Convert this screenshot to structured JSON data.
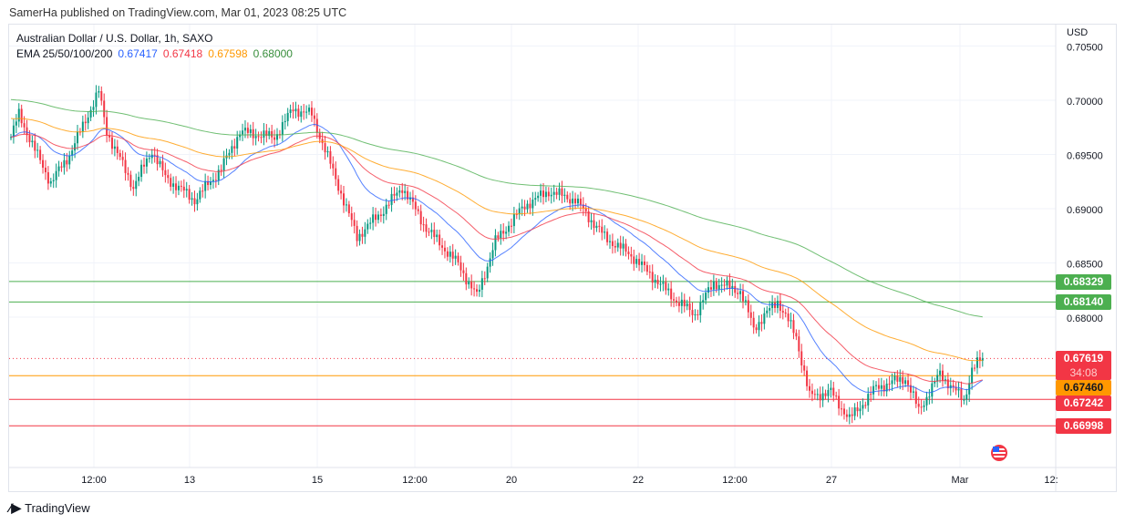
{
  "published": "SamerHa published on TradingView.com, Mar 01, 2023 08:25 UTC",
  "symbol_line": "Australian Dollar / U.S. Dollar, 1h, SAXO",
  "ema": {
    "label": "EMA 25/50/100/200",
    "values": [
      "0.67417",
      "0.67418",
      "0.67598",
      "0.68000"
    ],
    "colors": [
      "#2962ff",
      "#f23645",
      "#ff9800",
      "#388e3c"
    ]
  },
  "currency": "USD",
  "footer": "TradingView",
  "chart_data": {
    "type": "candlestick",
    "y_ticks": [
      "0.70500",
      "0.70000",
      "0.69500",
      "0.69000",
      "0.68500",
      "0.68000"
    ],
    "x_ticks": [
      "12:00",
      "13",
      "15",
      "12:00",
      "20",
      "22",
      "12:00",
      "27",
      "Mar",
      "12:"
    ],
    "ylim": [
      0.6668,
      0.7055
    ],
    "close_path": [
      [
        0,
        0.6966
      ],
      [
        3,
        0.6987
      ],
      [
        9,
        0.6954
      ],
      [
        15,
        0.6924
      ],
      [
        22,
        0.695
      ],
      [
        33,
        0.7008
      ],
      [
        36,
        0.6971
      ],
      [
        46,
        0.692
      ],
      [
        53,
        0.6954
      ],
      [
        58,
        0.6929
      ],
      [
        69,
        0.6908
      ],
      [
        79,
        0.6937
      ],
      [
        86,
        0.6971
      ],
      [
        99,
        0.6966
      ],
      [
        106,
        0.6992
      ],
      [
        113,
        0.6987
      ],
      [
        120,
        0.6941
      ],
      [
        130,
        0.6874
      ],
      [
        140,
        0.6899
      ],
      [
        147,
        0.692
      ],
      [
        156,
        0.6882
      ],
      [
        168,
        0.6849
      ],
      [
        175,
        0.6819
      ],
      [
        182,
        0.687
      ],
      [
        193,
        0.6903
      ],
      [
        202,
        0.6916
      ],
      [
        212,
        0.6908
      ],
      [
        223,
        0.6874
      ],
      [
        233,
        0.6857
      ],
      [
        240,
        0.684
      ],
      [
        250,
        0.6815
      ],
      [
        257,
        0.6803
      ],
      [
        264,
        0.6832
      ],
      [
        274,
        0.6824
      ],
      [
        279,
        0.679
      ],
      [
        288,
        0.6815
      ],
      [
        295,
        0.6782
      ],
      [
        300,
        0.6727
      ],
      [
        308,
        0.6731
      ],
      [
        315,
        0.6706
      ],
      [
        325,
        0.6735
      ],
      [
        336,
        0.6744
      ],
      [
        341,
        0.6714
      ],
      [
        349,
        0.6748
      ],
      [
        358,
        0.6723
      ],
      [
        361,
        0.6752
      ],
      [
        365,
        0.6762
      ]
    ],
    "levels": [
      {
        "value": "0.68329",
        "color": "#4caf50"
      },
      {
        "value": "0.68140",
        "color": "#4caf50"
      },
      {
        "value": "0.67460",
        "color": "#ff9800",
        "text": "#131722"
      },
      {
        "value": "0.67242",
        "color": "#f23645"
      },
      {
        "value": "0.66998",
        "color": "#f23645"
      }
    ],
    "last_price": "0.67619",
    "countdown": "34:08",
    "up_color": "#089981",
    "down_color": "#f23645"
  }
}
